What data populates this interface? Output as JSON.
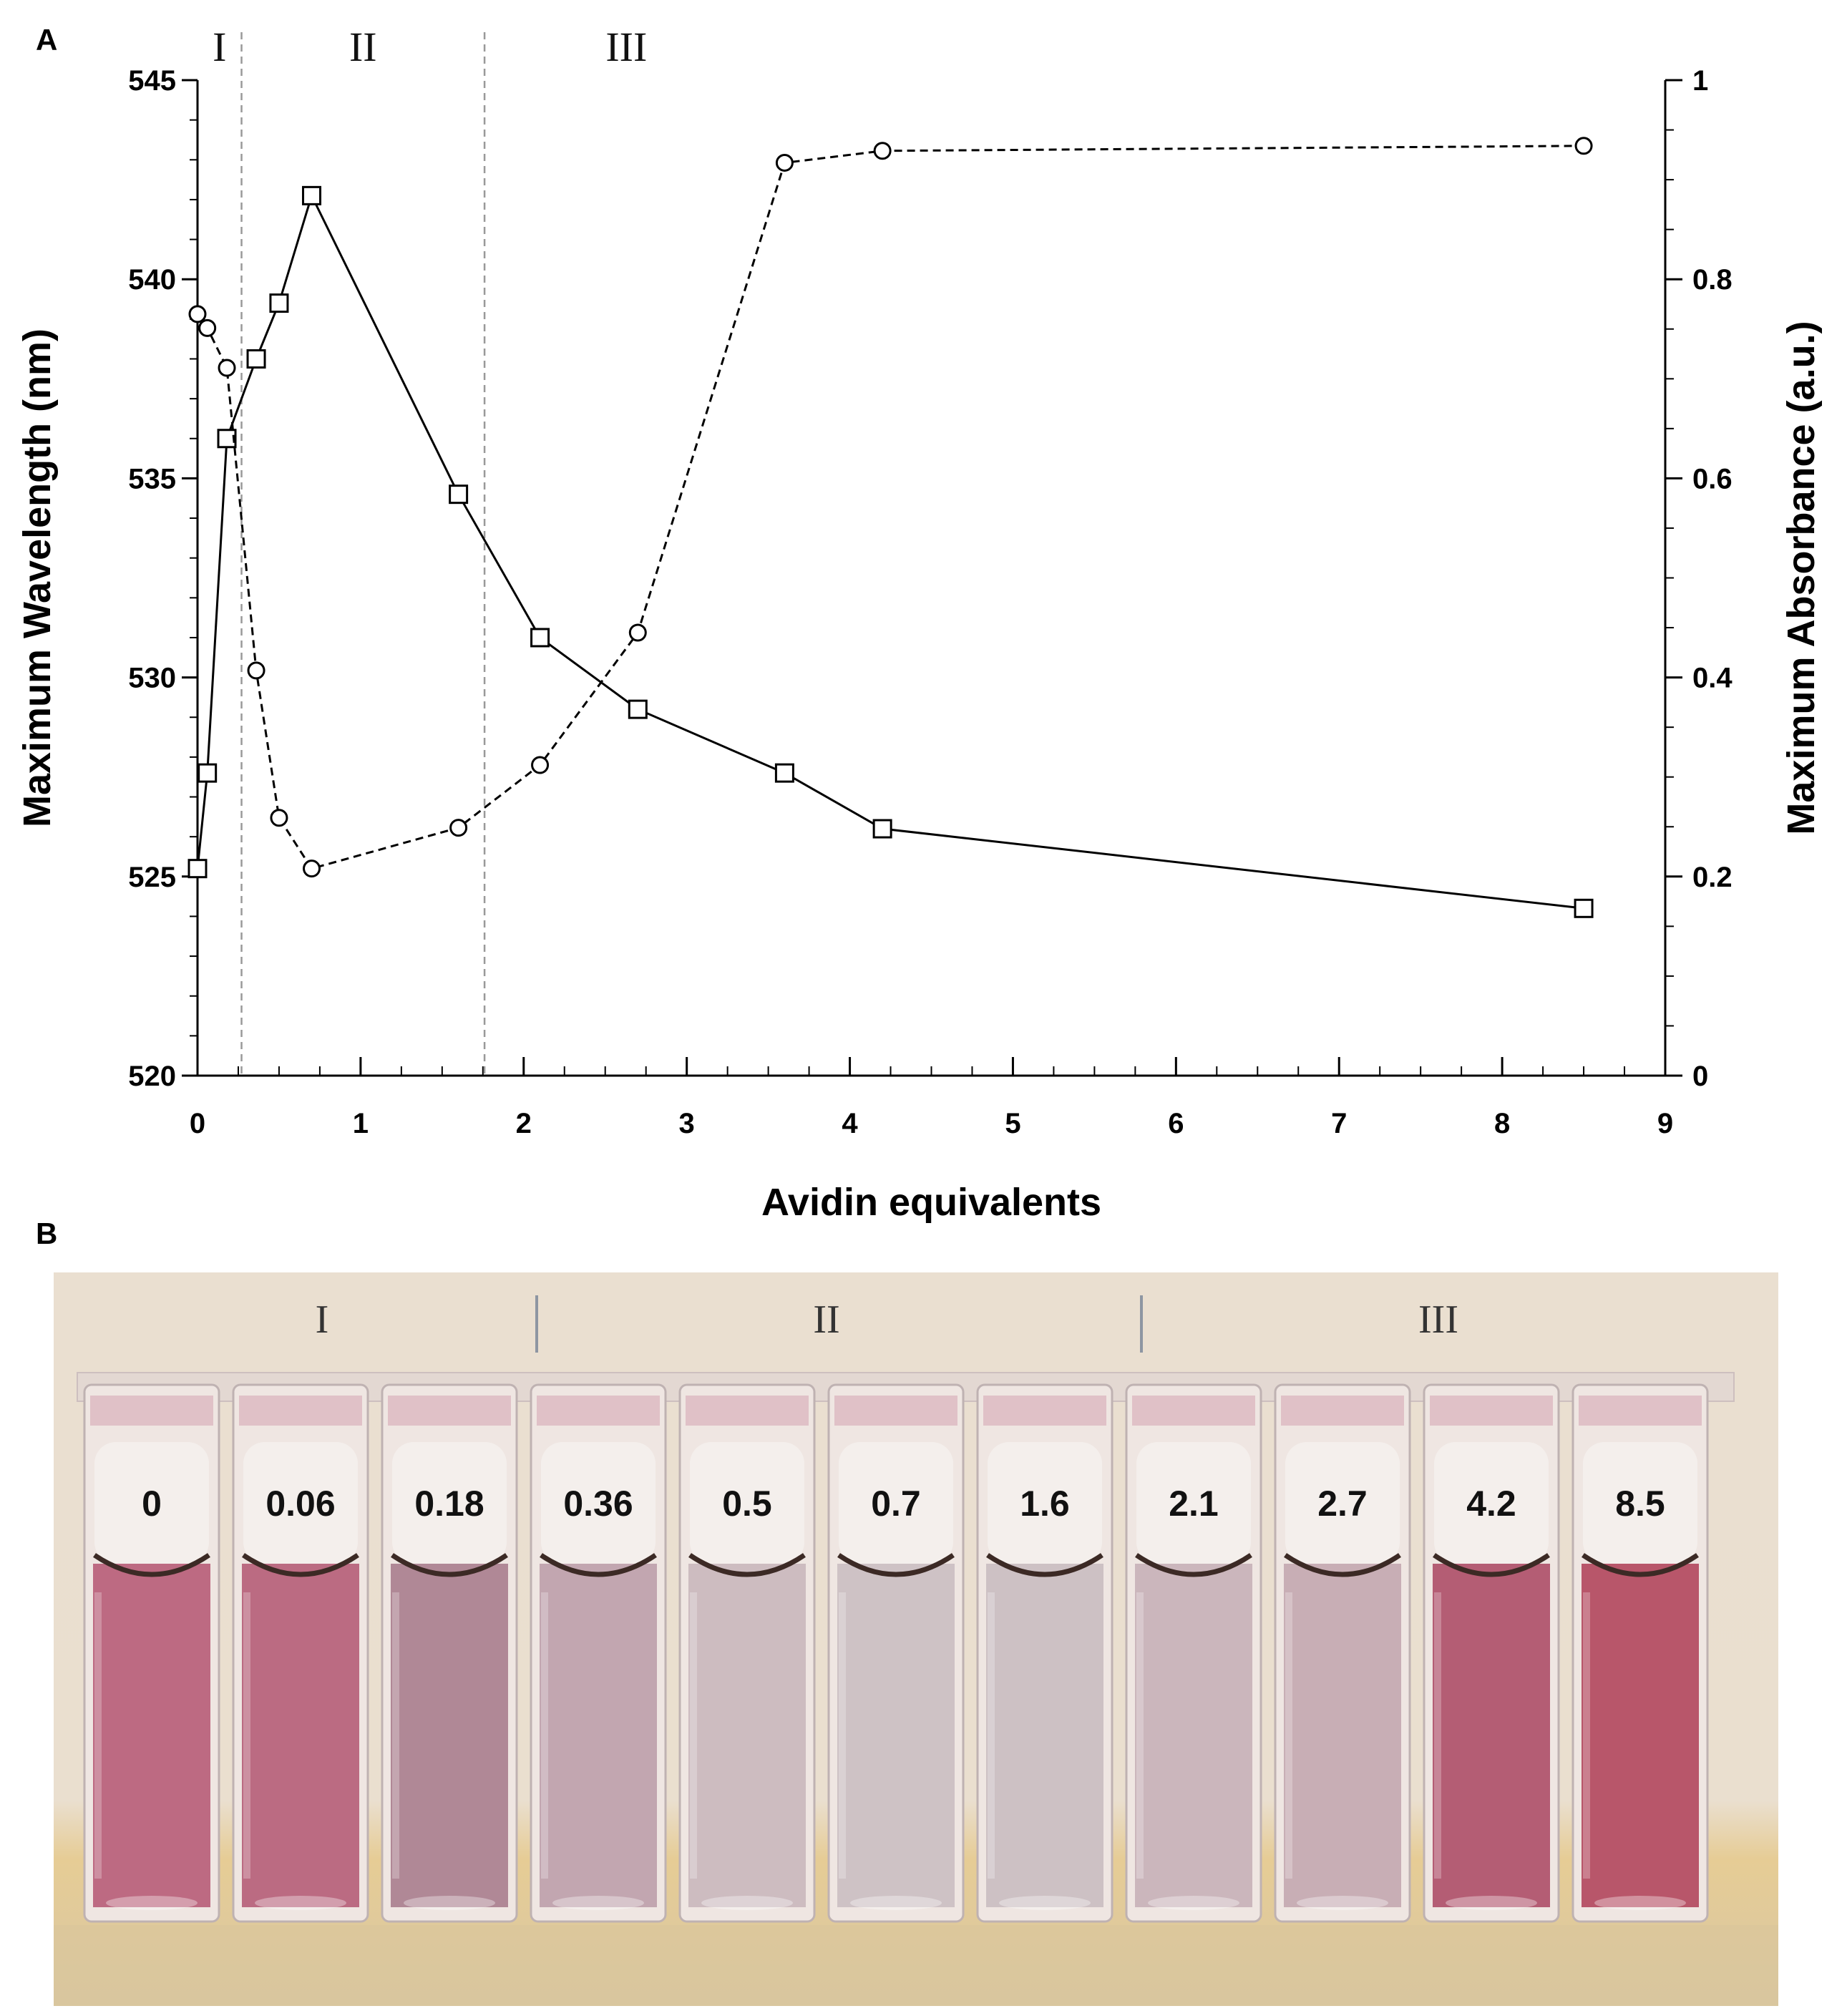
{
  "panel_a_label": "A",
  "panel_b_label": "B",
  "chart_data": {
    "type": "line",
    "xlabel": "Avidin equivalents",
    "ylabel": "Maximum Wavelength  (nm)",
    "y2label": "Maximum Absorbance (a.u.)",
    "xlim": [
      0,
      9
    ],
    "ylim": [
      520,
      545
    ],
    "y2lim": [
      0,
      1
    ],
    "x_ticks": [
      "0",
      "1",
      "2",
      "3",
      "4",
      "5",
      "6",
      "7",
      "8",
      "9"
    ],
    "y_ticks": [
      "520",
      "525",
      "530",
      "535",
      "540",
      "545"
    ],
    "y2_ticks": [
      "0",
      "0.2",
      "0.4",
      "0.6",
      "0.8",
      "1"
    ],
    "region_boundaries": [
      0.27,
      1.76
    ],
    "regions": [
      "I",
      "II",
      "III"
    ],
    "series": [
      {
        "name": "Maximum Wavelength",
        "axis": "left",
        "marker": "square",
        "line_style": "solid",
        "x": [
          0,
          0.06,
          0.18,
          0.36,
          0.5,
          0.7,
          1.6,
          2.1,
          2.7,
          3.6,
          4.2,
          8.5
        ],
        "values": [
          525.2,
          527.6,
          536.0,
          538.0,
          539.4,
          542.1,
          534.6,
          531.0,
          529.2,
          527.6,
          526.2,
          524.2
        ]
      },
      {
        "name": "Maximum Absorbance",
        "axis": "right",
        "marker": "circle",
        "line_style": "dashed",
        "x": [
          0,
          0.06,
          0.18,
          0.36,
          0.5,
          0.7,
          1.6,
          2.1,
          2.7,
          3.6,
          4.2,
          8.5
        ],
        "values": [
          0.765,
          0.751,
          0.711,
          0.407,
          0.259,
          0.208,
          0.249,
          0.312,
          0.445,
          0.917,
          0.929,
          0.934
        ]
      }
    ]
  },
  "photo": {
    "regions": [
      "I",
      "II",
      "III"
    ],
    "concentrations": [
      "0",
      "0.06",
      "0.18",
      "0.36",
      "0.5",
      "0.7",
      "1.6",
      "2.1",
      "2.7",
      "4.2",
      "8.5"
    ],
    "liquid_colors": [
      "#bd6a82",
      "#bb6b82",
      "#b08896",
      "#c2a6b0",
      "#cdbcc0",
      "#cec2c5",
      "#cdc1c4",
      "#cbb6bc",
      "#c8aeb5",
      "#b45d74",
      "#b8566a"
    ]
  }
}
